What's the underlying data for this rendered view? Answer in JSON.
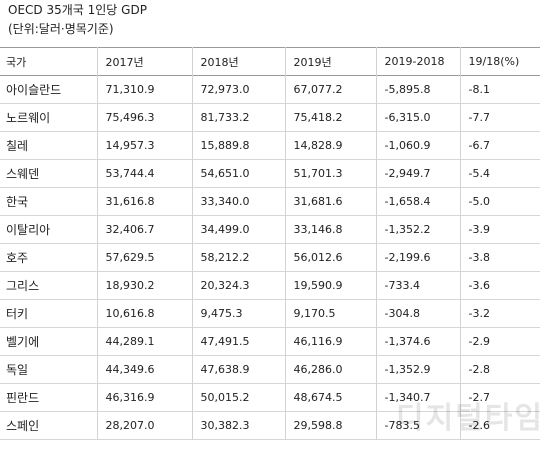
{
  "title": "OECD 35개국 1인당 GDP",
  "subtitle": "(단위:달러·명목기준)",
  "watermark": "디지털타임스",
  "table": {
    "headers": [
      "국가",
      "2017년",
      "2018년",
      "2019년",
      "2019-2018",
      "19/18(%)"
    ],
    "rows": [
      [
        "아이슬란드",
        "71,310.9",
        "72,973.0",
        "67,077.2",
        "-5,895.8",
        "-8.1"
      ],
      [
        "노르웨이",
        "75,496.3",
        "81,733.2",
        "75,418.2",
        "-6,315.0",
        "-7.7"
      ],
      [
        "칠레",
        "14,957.3",
        "15,889.8",
        "14,828.9",
        "-1,060.9",
        "-6.7"
      ],
      [
        "스웨덴",
        "53,744.4",
        "54,651.0",
        "51,701.3",
        "-2,949.7",
        "-5.4"
      ],
      [
        "한국",
        "31,616.8",
        "33,340.0",
        "31,681.6",
        "-1,658.4",
        "-5.0"
      ],
      [
        "이탈리아",
        "32,406.7",
        "34,499.0",
        "33,146.8",
        "-1,352.2",
        "-3.9"
      ],
      [
        "호주",
        "57,629.5",
        "58,212.2",
        "56,012.6",
        "-2,199.6",
        "-3.8"
      ],
      [
        "그리스",
        "18,930.2",
        "20,324.3",
        "19,590.9",
        "-733.4",
        "-3.6"
      ],
      [
        "터키",
        "10,616.8",
        "9,475.3",
        "9,170.5",
        "-304.8",
        "-3.2"
      ],
      [
        "벨기에",
        "44,289.1",
        "47,491.5",
        "46,116.9",
        "-1,374.6",
        "-2.9"
      ],
      [
        "독일",
        "44,349.6",
        "47,638.9",
        "46,286.0",
        "-1,352.9",
        "-2.8"
      ],
      [
        "핀란드",
        "46,316.9",
        "50,015.2",
        "48,674.5",
        "-1,340.7",
        "-2.7"
      ],
      [
        "스페인",
        "28,207.0",
        "30,382.3",
        "29,598.8",
        "-783.5",
        "-2.6"
      ]
    ]
  }
}
